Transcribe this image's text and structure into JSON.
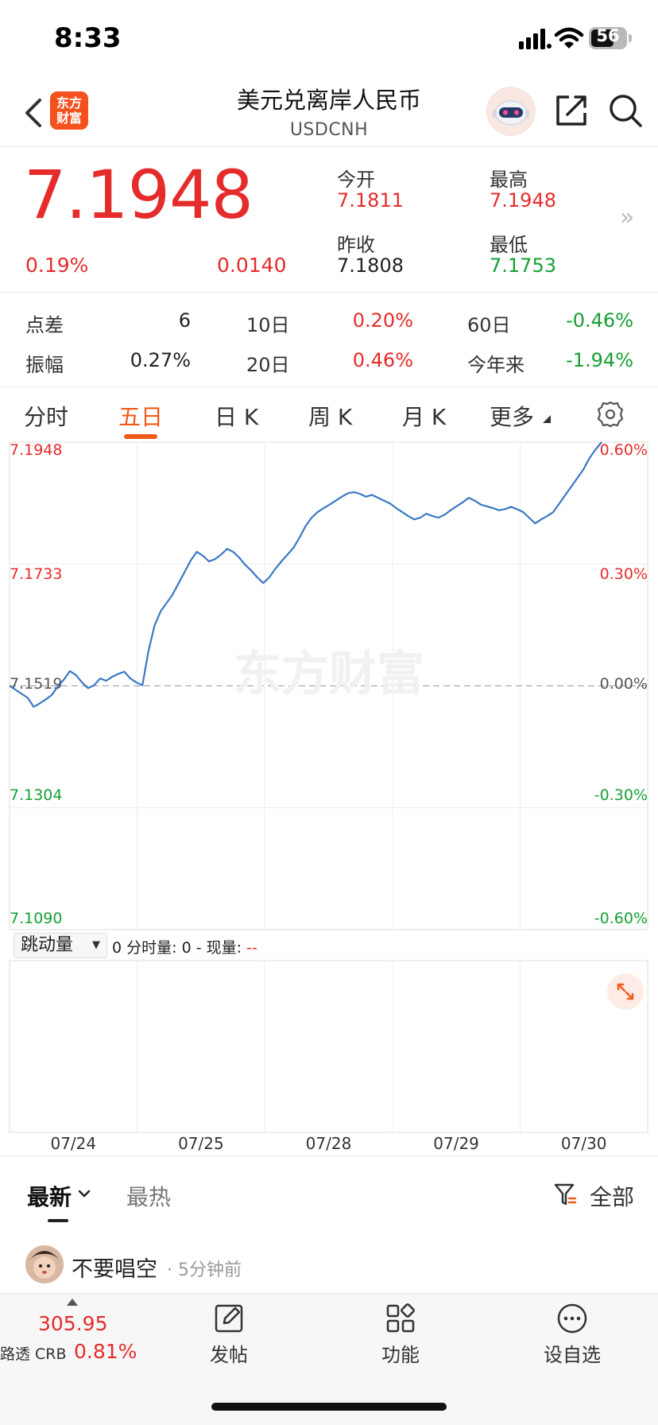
{
  "status_bar": {
    "time": "8:33",
    "battery": "56"
  },
  "header": {
    "logo_line1": "东方",
    "logo_line2": "财富",
    "title": "美元兑离岸人民币",
    "subtitle": "USDCNH"
  },
  "quote": {
    "price": "7.1948",
    "change_pct": "0.19%",
    "change": "0.0140",
    "open_label": "今开",
    "open": "7.1811",
    "high_label": "最高",
    "high": "7.1948",
    "prev_close_label": "昨收",
    "prev_close": "7.1808",
    "low_label": "最低",
    "low": "7.1753",
    "more_arrow": "»"
  },
  "stats": [
    {
      "label": "点差",
      "value": "6",
      "color": "#222222"
    },
    {
      "label": "10日",
      "value": "0.20%",
      "color": "#e62b2b"
    },
    {
      "label": "60日",
      "value": "-0.46%",
      "color": "#16a034"
    },
    {
      "label": "振幅",
      "value": "0.27%",
      "color": "#222222"
    },
    {
      "label": "20日",
      "value": "0.46%",
      "color": "#e62b2b"
    },
    {
      "label": "今年来",
      "value": "-1.94%",
      "color": "#16a034"
    }
  ],
  "tabs": [
    {
      "label": "分时",
      "active": false
    },
    {
      "label": "五日",
      "active": true
    },
    {
      "label": "日 K",
      "active": false
    },
    {
      "label": "周 K",
      "active": false
    },
    {
      "label": "月 K",
      "active": false
    },
    {
      "label": "更多",
      "active": false
    }
  ],
  "chart_data": {
    "type": "line",
    "y_left_labels": [
      "7.1948",
      "7.1733",
      "7.1519",
      "7.1304",
      "7.1090"
    ],
    "y_right_labels": [
      "0.60%",
      "0.30%",
      "0.00%",
      "-0.30%",
      "-0.60%"
    ],
    "ylim": [
      7.109,
      7.1948
    ],
    "baseline": 7.1519,
    "x_labels": [
      "07/24",
      "07/25",
      "07/28",
      "07/29",
      "07/30"
    ],
    "watermark": "东方财富",
    "line_color": "#3a78c3",
    "series": [
      {
        "values": [
          7.1519,
          7.1512,
          7.1505,
          7.1498,
          7.1482,
          7.1488,
          7.1495,
          7.1503,
          7.1518,
          7.153,
          7.1545,
          7.1538,
          7.1525,
          7.1515,
          7.152,
          7.1532,
          7.1528,
          7.1535,
          7.154,
          7.1544,
          7.1532,
          7.1525,
          7.152,
          7.158,
          7.1625,
          7.165,
          7.1665,
          7.168,
          7.17,
          7.172,
          7.174,
          7.1755,
          7.1748,
          7.1738,
          7.1742,
          7.175,
          7.176,
          7.1755,
          7.1745,
          7.1732,
          7.1722,
          7.171,
          7.17,
          7.171,
          7.1725,
          7.1738,
          7.175,
          7.1762,
          7.178,
          7.18,
          7.1815,
          7.1825,
          7.1832,
          7.1838,
          7.1845,
          7.1852,
          7.1858,
          7.186,
          7.1857,
          7.1852,
          7.1855,
          7.185,
          7.1845,
          7.184,
          7.1832,
          7.1825,
          7.1818,
          7.1812,
          7.1815,
          7.1822,
          7.1818,
          7.1815,
          7.182,
          7.1828,
          7.1835,
          7.1842,
          7.185,
          7.1845,
          7.1838,
          7.1835,
          7.1832,
          7.1828,
          7.183,
          7.1834,
          7.183,
          7.1825,
          7.1815,
          7.1805,
          7.1812,
          7.1818,
          7.1825,
          7.184,
          7.1855,
          7.187,
          7.1885,
          7.19,
          7.192,
          7.1935,
          7.1948
        ]
      }
    ]
  },
  "volume": {
    "select_label": "跳动量",
    "readout_prefix": "0 分时量: 0 - 现量: ",
    "readout_value": "--"
  },
  "comments": {
    "tab_latest": "最新",
    "tab_hot": "最热",
    "filter": "全部",
    "username": "不要唱空",
    "time": "· 5分钟前"
  },
  "bottom": {
    "crb_value": "305.95",
    "crb_name": "路透 CRB",
    "crb_pct": "0.81%",
    "nav": [
      {
        "label": "发帖",
        "icon": "edit-icon"
      },
      {
        "label": "功能",
        "icon": "apps-icon"
      },
      {
        "label": "设自选",
        "icon": "more-dots-icon"
      }
    ]
  }
}
